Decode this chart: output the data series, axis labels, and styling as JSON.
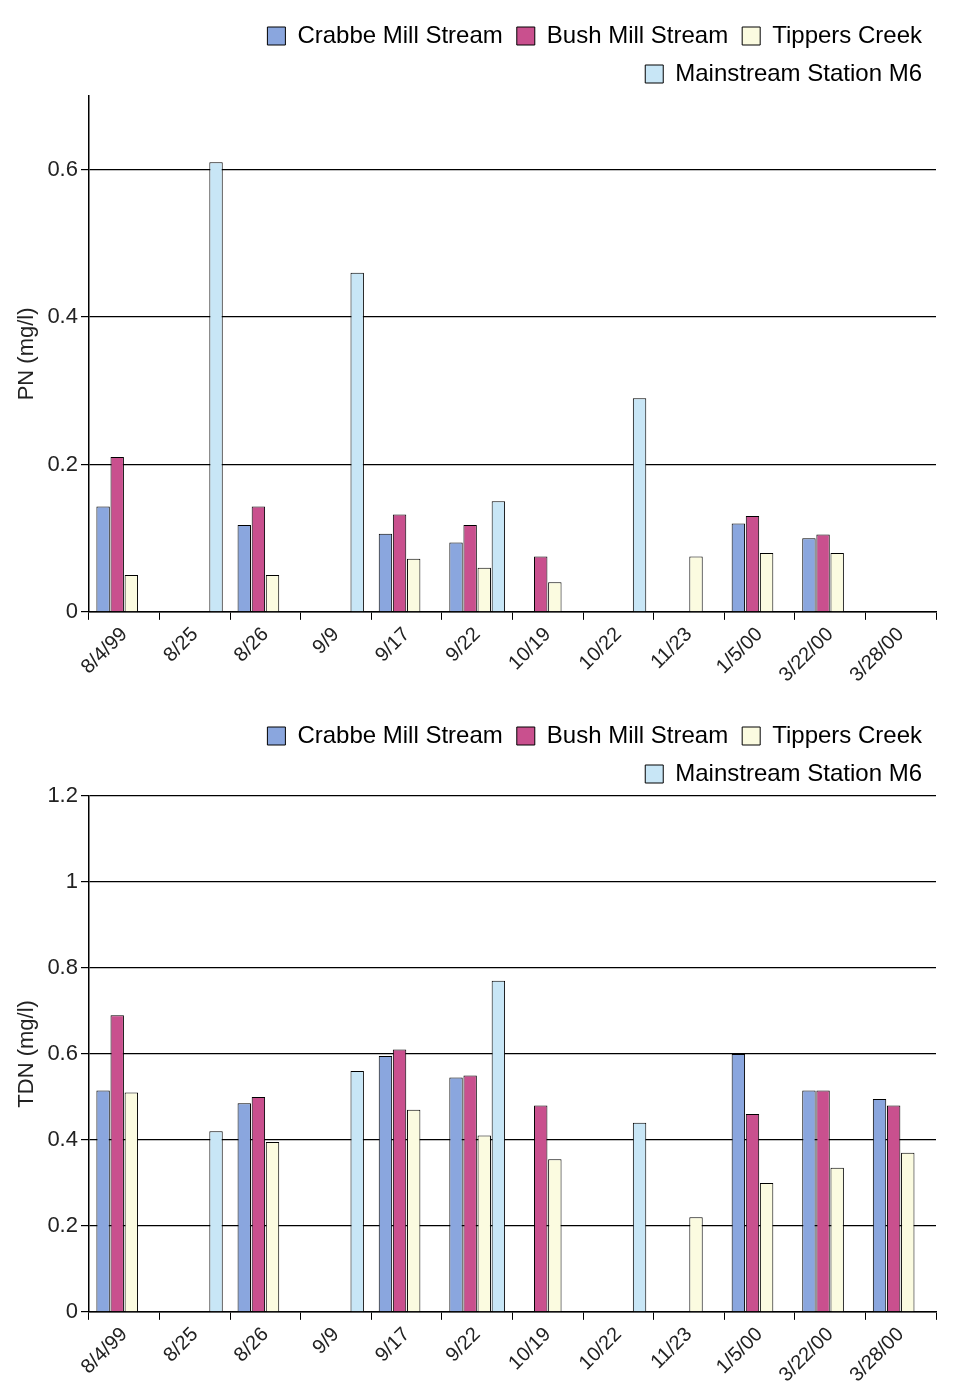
{
  "chart_data": [
    {
      "type": "bar",
      "ylabel": "PN (mg/l)",
      "categories": [
        "8/4/99",
        "8/25",
        "8/26",
        "9/9",
        "9/17",
        "9/22",
        "10/19",
        "10/22",
        "11/23",
        "1/5/00",
        "3/22/00",
        "3/28/00"
      ],
      "series": [
        {
          "name": "Crabbe Mill Stream",
          "color": "#8aa6de",
          "values": [
            0.143,
            null,
            0.118,
            null,
            0.106,
            0.094,
            null,
            null,
            null,
            0.12,
            0.1,
            null
          ]
        },
        {
          "name": "Bush Mill Stream",
          "color": "#c9508e",
          "values": [
            0.21,
            null,
            0.143,
            null,
            0.132,
            0.118,
            0.075,
            null,
            null,
            0.13,
            0.105,
            null
          ]
        },
        {
          "name": "Tippers Creek",
          "color": "#fbfbe0",
          "values": [
            0.05,
            null,
            0.05,
            null,
            0.072,
            0.06,
            0.04,
            null,
            0.075,
            0.08,
            0.08,
            null
          ]
        },
        {
          "name": "Mainstream Station M6",
          "color": "#c8e6f6",
          "values": [
            null,
            0.61,
            null,
            0.46,
            null,
            0.15,
            null,
            0.29,
            null,
            null,
            null,
            null
          ]
        }
      ],
      "ylim": [
        0,
        0.7
      ],
      "yticks": [
        0,
        0.2,
        0.4,
        0.6
      ],
      "grid": "y",
      "legend": "top right"
    },
    {
      "type": "bar",
      "ylabel": "TDN (mg/l)",
      "categories": [
        "8/4/99",
        "8/25",
        "8/26",
        "9/9",
        "9/17",
        "9/22",
        "10/19",
        "10/22",
        "11/23",
        "1/5/00",
        "3/22/00",
        "3/28/00"
      ],
      "series": [
        {
          "name": "Crabbe Mill Stream",
          "color": "#8aa6de",
          "values": [
            0.515,
            null,
            0.485,
            null,
            0.595,
            0.545,
            null,
            null,
            null,
            0.6,
            0.515,
            0.495
          ]
        },
        {
          "name": "Bush Mill Stream",
          "color": "#c9508e",
          "values": [
            0.69,
            null,
            0.5,
            null,
            0.61,
            0.55,
            0.48,
            null,
            null,
            0.46,
            0.515,
            0.48
          ]
        },
        {
          "name": "Tippers Creek",
          "color": "#fbfbe0",
          "values": [
            0.51,
            null,
            0.395,
            null,
            0.47,
            0.41,
            0.355,
            null,
            0.22,
            0.3,
            0.335,
            0.37
          ]
        },
        {
          "name": "Mainstream Station M6",
          "color": "#c8e6f6",
          "values": [
            null,
            0.42,
            null,
            0.56,
            null,
            0.77,
            null,
            0.44,
            null,
            null,
            null,
            null
          ]
        }
      ],
      "ylim": [
        0,
        1.2
      ],
      "yticks": [
        0,
        0.2,
        0.4,
        0.6,
        0.8,
        1,
        1.2
      ],
      "grid": "y",
      "legend": "top right"
    }
  ]
}
